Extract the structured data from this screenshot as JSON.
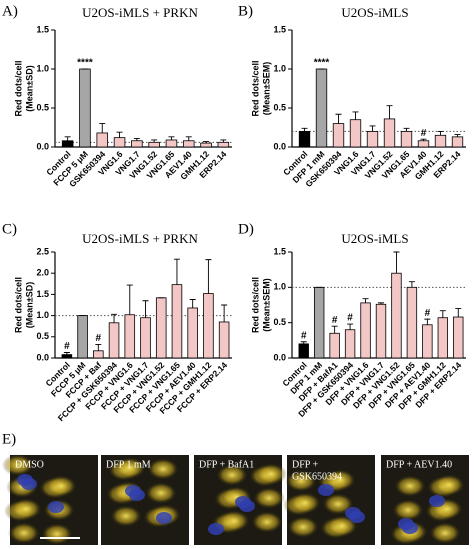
{
  "chart_data": [
    {
      "type": "bar",
      "panel": "A)",
      "title": "U2OS-iMLS + PRKN",
      "ylabel": [
        "Red dots/cell",
        "(Mean±SD)"
      ],
      "categories": [
        "Control",
        "FCCP 5 μM",
        "GSK650394",
        "VNG1.6",
        "VNG1.7",
        "VNG1.52",
        "VNG1.65",
        "AEV1.40",
        "GMH1.12",
        "ERP2.14"
      ],
      "values": [
        0.08,
        1.0,
        0.18,
        0.12,
        0.08,
        0.06,
        0.09,
        0.08,
        0.05,
        0.06
      ],
      "errors": [
        0.05,
        0,
        0.12,
        0.07,
        0.03,
        0.03,
        0.04,
        0.05,
        0.02,
        0.03
      ],
      "colors": [
        "#000000",
        "#a6a6a6",
        "#f4c7c7",
        "#f4c7c7",
        "#f4c7c7",
        "#f4c7c7",
        "#f4c7c7",
        "#f4c7c7",
        "#f4c7c7",
        "#f4c7c7"
      ],
      "annotations": [
        null,
        "****",
        null,
        null,
        null,
        null,
        null,
        null,
        null,
        null
      ],
      "reference_line": 0.06,
      "ylim": [
        0,
        1.5
      ],
      "yticks": [
        {
          "value": 0,
          "label": "0.0"
        },
        {
          "value": 0.5,
          "label": "0.5"
        },
        {
          "value": 1,
          "label": "1.0"
        },
        {
          "value": 1.5,
          "label": "1.5"
        }
      ]
    },
    {
      "type": "bar",
      "panel": "B)",
      "title": "U2OS-iMLS",
      "ylabel": [
        "Red dots/cell",
        "(Mean±SEM)"
      ],
      "categories": [
        "Control",
        "DFP 1 mM",
        "GSK650394",
        "VNG1.6",
        "VNG1.7",
        "VNG1.52",
        "VNG1.65",
        "AEV1.40",
        "GMH1.12",
        "ERP2.14"
      ],
      "values": [
        0.2,
        1.0,
        0.3,
        0.35,
        0.2,
        0.36,
        0.2,
        0.08,
        0.15,
        0.13
      ],
      "errors": [
        0.04,
        0,
        0.12,
        0.1,
        0.07,
        0.17,
        0.04,
        0.02,
        0.05,
        0.03
      ],
      "colors": [
        "#000000",
        "#a6a6a6",
        "#f4c7c7",
        "#f4c7c7",
        "#f4c7c7",
        "#f4c7c7",
        "#f4c7c7",
        "#f4c7c7",
        "#f4c7c7",
        "#f4c7c7"
      ],
      "annotations": [
        null,
        "****",
        null,
        null,
        null,
        null,
        null,
        "#",
        null,
        null
      ],
      "reference_line": 0.2,
      "ylim": [
        0,
        1.5
      ],
      "yticks": [
        {
          "value": 0,
          "label": "0.0"
        },
        {
          "value": 0.5,
          "label": "0.5"
        },
        {
          "value": 1,
          "label": "1.0"
        },
        {
          "value": 1.5,
          "label": "1.5"
        }
      ]
    },
    {
      "type": "bar",
      "panel": "C)",
      "title": "U2OS-iMLS + PRKN",
      "ylabel": [
        "Red dots/cell",
        "(Mean±SD)"
      ],
      "categories": [
        "Control",
        "FCCP 5 μM",
        "FCCP + Baf",
        "FCCP + GSK650394",
        "FCCP + VNG1.6",
        "FCCP + VNG1.7",
        "FCCP + VNG1.52",
        "FCCP + VNG1.65",
        "FCCP + AEV1.40",
        "FCCP + GMH1.12",
        "FCCP + ERP2.14"
      ],
      "values": [
        0.08,
        1.0,
        0.17,
        0.83,
        1.02,
        0.95,
        1.42,
        1.73,
        1.18,
        1.52,
        0.85
      ],
      "errors": [
        0.05,
        0,
        0.15,
        0.2,
        0.7,
        0.4,
        0,
        0.6,
        0.2,
        0.8,
        0.4
      ],
      "colors": [
        "#000000",
        "#a6a6a6",
        "#f4c7c7",
        "#f4c7c7",
        "#f4c7c7",
        "#f4c7c7",
        "#f4c7c7",
        "#f4c7c7",
        "#f4c7c7",
        "#f4c7c7",
        "#f4c7c7"
      ],
      "annotations": [
        "#",
        null,
        "#",
        null,
        null,
        null,
        null,
        null,
        null,
        null,
        null
      ],
      "reference_line": 1.0,
      "ylim": [
        0,
        2.5
      ],
      "yticks": [
        {
          "value": 0,
          "label": "0.0"
        },
        {
          "value": 0.5,
          "label": "0.5"
        },
        {
          "value": 1,
          "label": "1.0"
        },
        {
          "value": 1.5,
          "label": "1.5"
        },
        {
          "value": 2,
          "label": "2.0"
        },
        {
          "value": 2.5,
          "label": "2.5"
        }
      ]
    },
    {
      "type": "bar",
      "panel": "D)",
      "title": "U2OS-iMLS",
      "ylabel": [
        "Red dots/cell",
        "(Mean±SEM)"
      ],
      "categories": [
        "Control",
        "DFP 1 mM",
        "DFP + BafA1",
        "DFP + GSK650394",
        "DFP + VNG1.6",
        "DFP + VNG1.7",
        "DFP + VNG1.52",
        "DFP + VNG1.65",
        "DFP + AEV1.40",
        "DFP + GMH1.12",
        "DFP + ERP2.14"
      ],
      "values": [
        0.2,
        1.0,
        0.35,
        0.4,
        0.78,
        0.76,
        1.2,
        1.0,
        0.47,
        0.57,
        0.58
      ],
      "errors": [
        0.03,
        0,
        0.1,
        0.08,
        0.06,
        0.02,
        0.3,
        0.08,
        0.08,
        0.1,
        0.12
      ],
      "colors": [
        "#000000",
        "#a6a6a6",
        "#f4c7c7",
        "#f4c7c7",
        "#f4c7c7",
        "#f4c7c7",
        "#f4c7c7",
        "#f4c7c7",
        "#f4c7c7",
        "#f4c7c7",
        "#f4c7c7"
      ],
      "annotations": [
        "#",
        null,
        "#",
        "#",
        null,
        null,
        null,
        null,
        "#",
        null,
        null
      ],
      "reference_line": 1.0,
      "ylim": [
        0,
        1.5
      ],
      "yticks": [
        {
          "value": 0,
          "label": "0.0"
        },
        {
          "value": 0.5,
          "label": "0.5"
        },
        {
          "value": 1,
          "label": "1.0"
        },
        {
          "value": 1.5,
          "label": "1.5"
        }
      ]
    }
  ],
  "panel_e": {
    "panel": "E)",
    "images": [
      [
        "DMSO"
      ],
      [
        "DFP 1 mM"
      ],
      [
        "DFP + BafA1"
      ],
      [
        "DFP +",
        "GSK650394"
      ],
      [
        "DFP + AEV1.40"
      ]
    ]
  }
}
